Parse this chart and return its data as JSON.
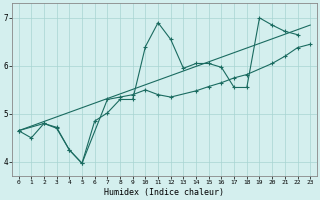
{
  "xlabel": "Humidex (Indice chaleur)",
  "ylabel": "",
  "background_color": "#d4efee",
  "grid_color": "#a8d4d2",
  "line_color": "#1a6b60",
  "xlim": [
    -0.5,
    23.5
  ],
  "ylim": [
    3.7,
    7.3
  ],
  "xticks": [
    0,
    1,
    2,
    3,
    4,
    5,
    6,
    7,
    8,
    9,
    10,
    11,
    12,
    13,
    14,
    15,
    16,
    17,
    18,
    19,
    20,
    21,
    22,
    23
  ],
  "yticks": [
    4,
    5,
    6,
    7
  ],
  "line1_x": [
    0,
    1,
    2,
    3,
    4,
    5,
    6,
    7,
    8,
    9,
    10,
    11,
    12,
    13,
    14,
    15,
    16,
    17,
    18,
    19,
    20,
    21,
    22
  ],
  "line1_y": [
    4.65,
    4.5,
    4.8,
    4.7,
    4.25,
    3.97,
    4.85,
    5.02,
    5.3,
    5.3,
    6.4,
    6.9,
    6.55,
    5.95,
    6.05,
    6.05,
    5.97,
    5.55,
    5.55,
    7.0,
    6.85,
    6.72,
    6.65
  ],
  "line2_x": [
    0,
    2,
    3,
    4,
    5,
    7,
    8,
    9,
    10,
    11,
    12,
    14,
    15,
    16,
    17,
    18,
    20,
    21,
    22,
    23
  ],
  "line2_y": [
    4.65,
    4.8,
    4.72,
    4.25,
    3.97,
    5.3,
    5.35,
    5.4,
    5.5,
    5.4,
    5.35,
    5.48,
    5.57,
    5.65,
    5.75,
    5.82,
    6.05,
    6.2,
    6.38,
    6.45
  ],
  "line3_x": [
    0,
    23
  ],
  "line3_y": [
    4.65,
    6.85
  ]
}
